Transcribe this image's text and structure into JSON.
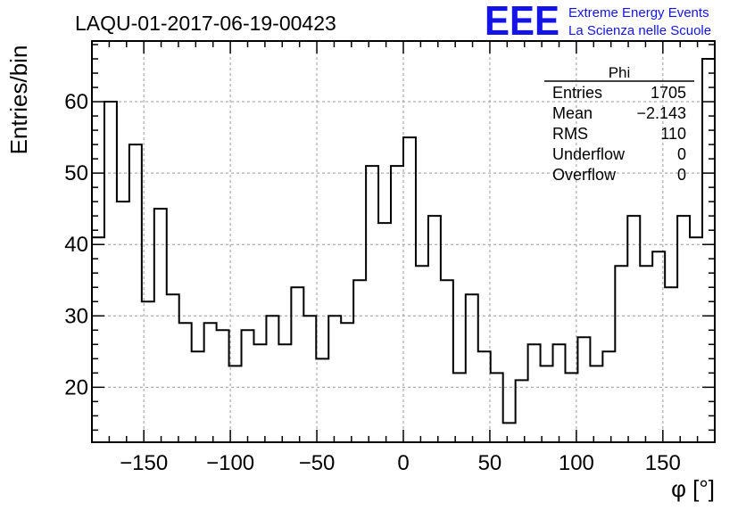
{
  "title": "LAQU-01-2017-06-19-00423",
  "logo": {
    "mark": "EEE",
    "line1": "Extreme Energy Events",
    "line2": "La Scienza nelle Scuole",
    "color": "#1414e6"
  },
  "stats": {
    "name": "Phi",
    "rows": [
      {
        "label": "Entries",
        "value": "1705"
      },
      {
        "label": "Mean",
        "value": "−2.143"
      },
      {
        "label": "RMS",
        "value": "110"
      },
      {
        "label": "Underflow",
        "value": "0"
      },
      {
        "label": "Overflow",
        "value": "0"
      }
    ]
  },
  "chart_data": {
    "type": "histogram",
    "xlabel": "φ [°]",
    "ylabel": "Entries/bin",
    "xlim": [
      -180,
      180
    ],
    "ylim": [
      12.3,
      68.5
    ],
    "bin_width": 7.2,
    "x_ticks": [
      -150,
      -100,
      -50,
      0,
      50,
      100,
      150
    ],
    "x_tick_labels": [
      "−150",
      "−100",
      "−50",
      "0",
      "50",
      "100",
      "150"
    ],
    "y_ticks": [
      20,
      30,
      40,
      50,
      60
    ],
    "y_tick_labels": [
      "20",
      "30",
      "40",
      "50",
      "60"
    ],
    "grid": true,
    "values": [
      41,
      60,
      46,
      54,
      32,
      45,
      33,
      29,
      25,
      29,
      28,
      23,
      28,
      26,
      30,
      26,
      34,
      30,
      24,
      30,
      29,
      35,
      51,
      43,
      51,
      55,
      37,
      44,
      35,
      22,
      33,
      25,
      22,
      15,
      21,
      26,
      23,
      26,
      22,
      27,
      23,
      25,
      37,
      44,
      37,
      39,
      34,
      44,
      41,
      66
    ]
  }
}
